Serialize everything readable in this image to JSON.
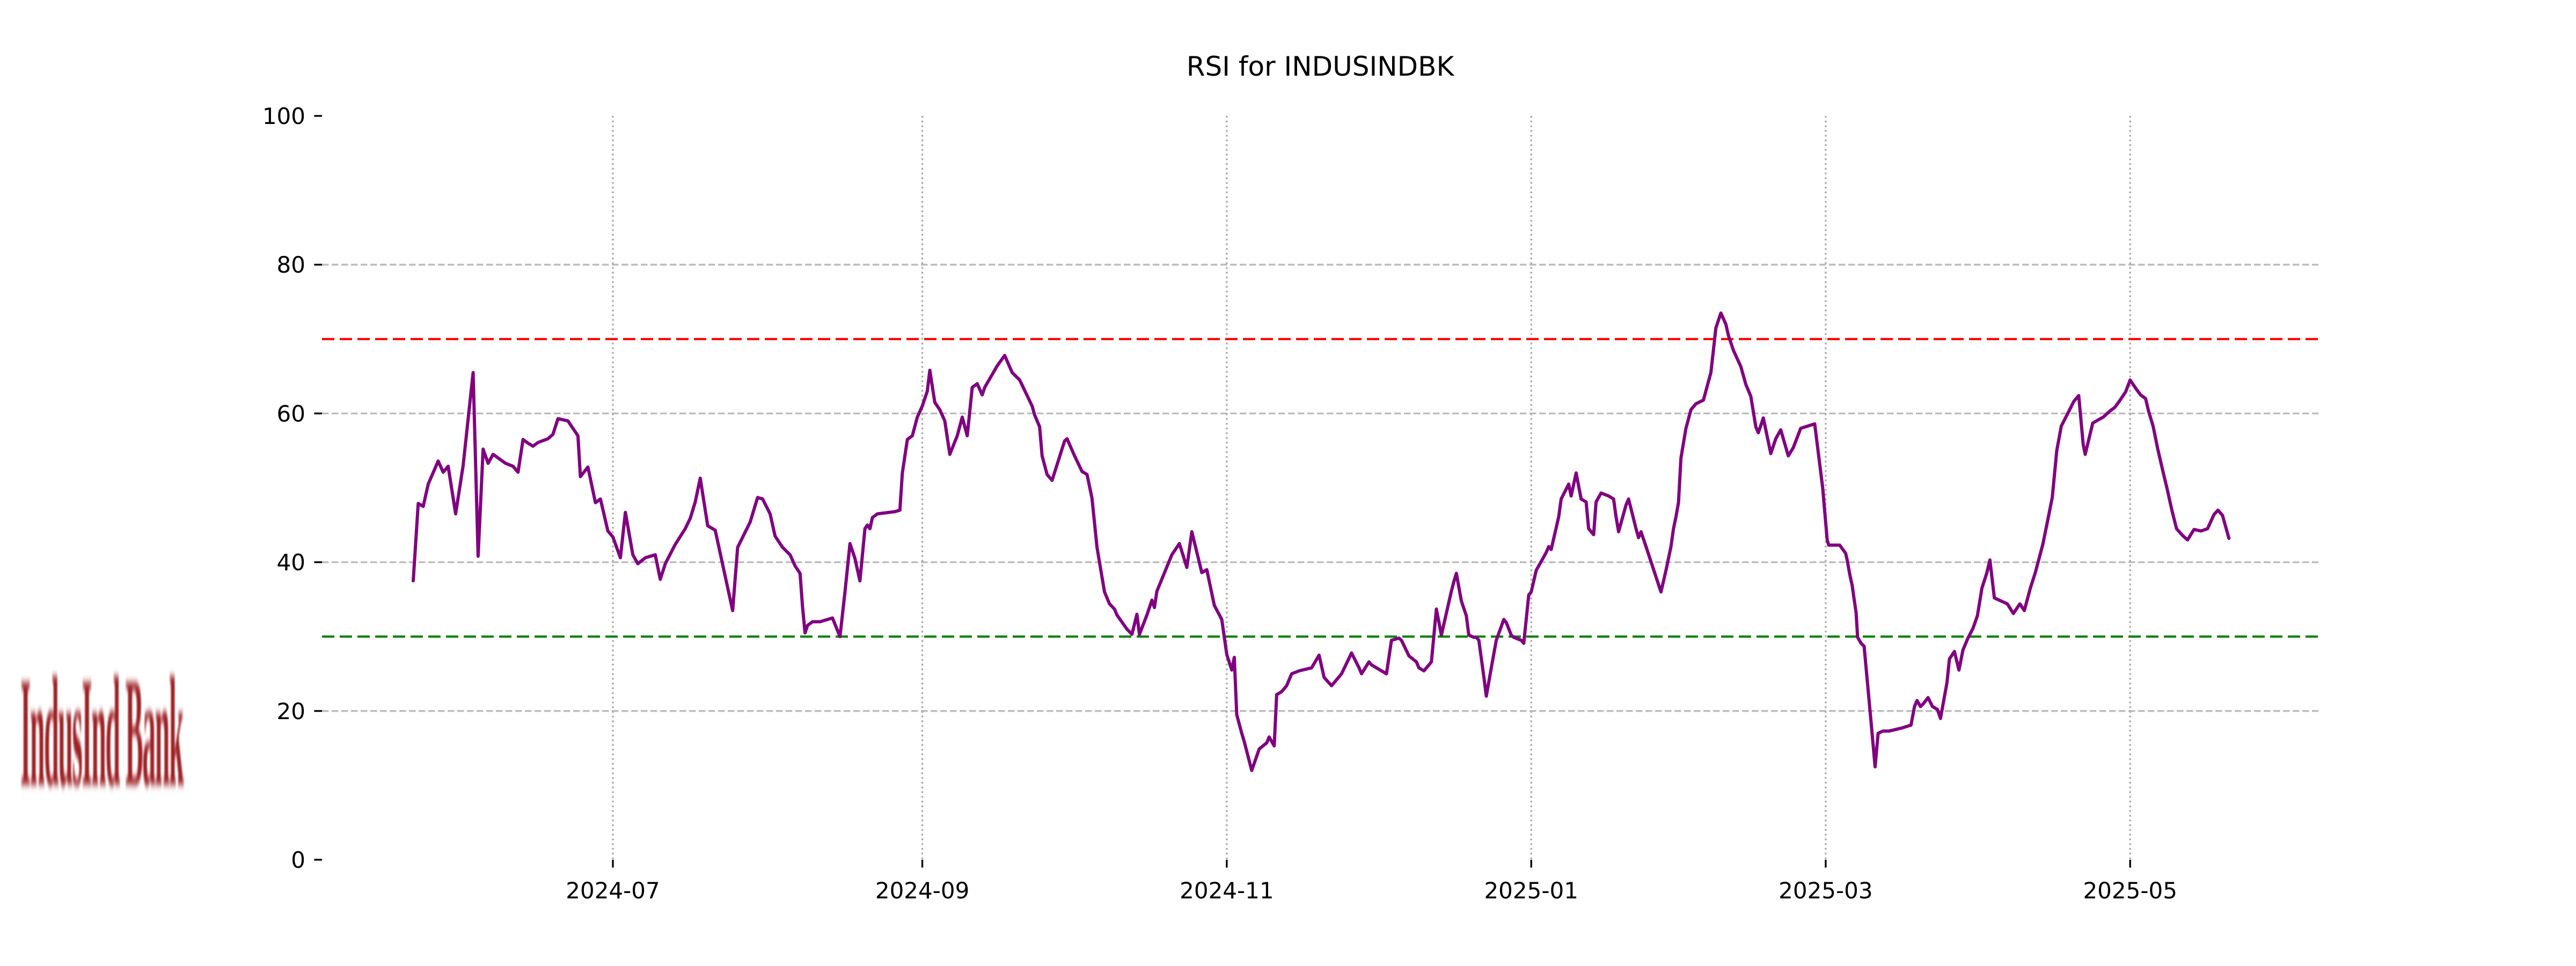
{
  "title": "RSI for INDUSINDBK",
  "watermark": {
    "text": "IndusInd Bank",
    "color": "#9E2125"
  },
  "chart_data": {
    "type": "line",
    "title": "RSI for INDUSINDBK",
    "series_name": "RSI",
    "line_color": "#800080",
    "grid": "on",
    "legend_position": "none",
    "ylim": [
      0,
      100
    ],
    "y_ticks": [
      0,
      20,
      40,
      60,
      80,
      100
    ],
    "y_gridlines": [
      20,
      40,
      60,
      80
    ],
    "reference_lines": [
      {
        "name": "overbought",
        "value": 70,
        "color": "#FF0000"
      },
      {
        "name": "oversold",
        "value": 30,
        "color": "#008000"
      }
    ],
    "x_epoch": "2024-05-22",
    "x_ticks": [
      {
        "label": "2024-07",
        "day": 40
      },
      {
        "label": "2024-09",
        "day": 102
      },
      {
        "label": "2024-11",
        "day": 163
      },
      {
        "label": "2025-01",
        "day": 224
      },
      {
        "label": "2025-03",
        "day": 283
      },
      {
        "label": "2025-05",
        "day": 344
      }
    ],
    "points": [
      [
        0,
        37.5
      ],
      [
        1,
        47.9
      ],
      [
        2,
        47.5
      ],
      [
        3,
        50.5
      ],
      [
        5,
        53.6
      ],
      [
        6,
        52.1
      ],
      [
        7,
        52.9
      ],
      [
        8.5,
        46.5
      ],
      [
        10,
        53.0
      ],
      [
        12,
        65.5
      ],
      [
        13,
        40.8
      ],
      [
        14,
        55.2
      ],
      [
        15,
        53.3
      ],
      [
        16,
        54.5
      ],
      [
        18.5,
        53.3
      ],
      [
        20,
        52.9
      ],
      [
        21,
        52.1
      ],
      [
        22,
        56.5
      ],
      [
        23,
        56.0
      ],
      [
        24,
        55.6
      ],
      [
        25,
        56.1
      ],
      [
        27,
        56.6
      ],
      [
        28,
        57.2
      ],
      [
        29,
        59.3
      ],
      [
        31,
        59.0
      ],
      [
        33,
        57.0
      ],
      [
        33.5,
        51.5
      ],
      [
        35,
        52.8
      ],
      [
        36.5,
        48.0
      ],
      [
        37.5,
        48.5
      ],
      [
        39,
        44.2
      ],
      [
        40,
        43.4
      ],
      [
        41.5,
        40.6
      ],
      [
        42.5,
        46.7
      ],
      [
        44,
        41.0
      ],
      [
        45,
        39.8
      ],
      [
        46.5,
        40.6
      ],
      [
        48.5,
        41.0
      ],
      [
        49.5,
        37.7
      ],
      [
        50.5,
        39.8
      ],
      [
        52.5,
        42.4
      ],
      [
        54.5,
        44.5
      ],
      [
        55.5,
        45.9
      ],
      [
        56.5,
        48.1
      ],
      [
        57.5,
        51.3
      ],
      [
        59,
        44.9
      ],
      [
        60.5,
        44.3
      ],
      [
        64,
        33.5
      ],
      [
        65,
        42.0
      ],
      [
        67.5,
        45.4
      ],
      [
        69,
        48.7
      ],
      [
        70,
        48.5
      ],
      [
        71.5,
        46.5
      ],
      [
        72.5,
        43.5
      ],
      [
        74,
        42.0
      ],
      [
        75.5,
        41.0
      ],
      [
        76.5,
        39.5
      ],
      [
        77.5,
        38.5
      ],
      [
        78,
        34.0
      ],
      [
        78.5,
        30.5
      ],
      [
        79,
        31.5
      ],
      [
        80,
        32.0
      ],
      [
        81.5,
        32.0
      ],
      [
        84,
        32.5
      ],
      [
        85.5,
        30.0
      ],
      [
        86.5,
        36.0
      ],
      [
        87.5,
        42.5
      ],
      [
        88.5,
        40.5
      ],
      [
        89.5,
        37.5
      ],
      [
        90.5,
        44.5
      ],
      [
        91,
        45.0
      ],
      [
        91.5,
        44.5
      ],
      [
        92,
        46.0
      ],
      [
        93,
        46.5
      ],
      [
        96.5,
        46.8
      ],
      [
        97.5,
        47.0
      ],
      [
        98,
        52.0
      ],
      [
        99,
        56.5
      ],
      [
        100,
        57.0
      ],
      [
        101,
        59.5
      ],
      [
        102,
        61.0
      ],
      [
        103,
        63.0
      ],
      [
        103.5,
        65.8
      ],
      [
        104.5,
        61.5
      ],
      [
        105.5,
        60.5
      ],
      [
        106.5,
        59.0
      ],
      [
        107.5,
        54.5
      ],
      [
        109,
        57.0
      ],
      [
        110,
        59.5
      ],
      [
        111,
        57.0
      ],
      [
        112,
        63.5
      ],
      [
        113,
        64.0
      ],
      [
        114,
        62.5
      ],
      [
        114.5,
        63.5
      ],
      [
        117,
        66.4
      ],
      [
        118.5,
        67.8
      ],
      [
        120,
        65.5
      ],
      [
        121.5,
        64.5
      ],
      [
        124,
        61.0
      ],
      [
        124.5,
        59.8
      ],
      [
        125.5,
        58.2
      ],
      [
        126,
        54.3
      ],
      [
        127,
        51.8
      ],
      [
        128,
        51.0
      ],
      [
        130.5,
        56.3
      ],
      [
        131,
        56.6
      ],
      [
        132.5,
        54.3
      ],
      [
        134,
        52.2
      ],
      [
        135,
        51.8
      ],
      [
        136,
        48.6
      ],
      [
        137,
        42.0
      ],
      [
        138,
        38.0
      ],
      [
        138.5,
        36.0
      ],
      [
        139.5,
        34.4
      ],
      [
        140.5,
        33.7
      ],
      [
        141,
        32.9
      ],
      [
        143,
        31.0
      ],
      [
        144,
        30.3
      ],
      [
        145,
        33.0
      ],
      [
        145.5,
        30.3
      ],
      [
        147,
        32.9
      ],
      [
        148,
        34.9
      ],
      [
        148.5,
        33.9
      ],
      [
        149,
        36.1
      ],
      [
        152,
        41.0
      ],
      [
        153.5,
        42.5
      ],
      [
        155,
        39.3
      ],
      [
        156,
        44.1
      ],
      [
        158,
        38.6
      ],
      [
        159,
        39.0
      ],
      [
        160.5,
        34.2
      ],
      [
        162,
        32.3
      ],
      [
        163,
        27.6
      ],
      [
        164,
        25.5
      ],
      [
        164.5,
        27.2
      ],
      [
        165,
        19.5
      ],
      [
        166,
        17.0
      ],
      [
        166.5,
        15.9
      ],
      [
        168,
        12.0
      ],
      [
        169.5,
        14.9
      ],
      [
        171,
        15.7
      ],
      [
        171.5,
        16.5
      ],
      [
        172.5,
        15.3
      ],
      [
        173,
        22.2
      ],
      [
        174,
        22.6
      ],
      [
        175,
        23.4
      ],
      [
        176,
        25.0
      ],
      [
        177.5,
        25.4
      ],
      [
        180,
        25.8
      ],
      [
        181.5,
        27.5
      ],
      [
        182.5,
        24.5
      ],
      [
        184,
        23.4
      ],
      [
        186,
        25.0
      ],
      [
        188,
        27.8
      ],
      [
        189.5,
        25.8
      ],
      [
        190,
        25.0
      ],
      [
        191.5,
        26.6
      ],
      [
        192,
        26.2
      ],
      [
        194,
        25.4
      ],
      [
        195,
        25.0
      ],
      [
        196,
        29.5
      ],
      [
        197.5,
        29.8
      ],
      [
        198,
        29.5
      ],
      [
        199.5,
        27.4
      ],
      [
        201,
        26.6
      ],
      [
        201.5,
        25.8
      ],
      [
        202.5,
        25.4
      ],
      [
        203.5,
        26.2
      ],
      [
        204,
        26.6
      ],
      [
        205,
        33.7
      ],
      [
        206,
        30.2
      ],
      [
        208,
        36.1
      ],
      [
        208.5,
        37.4
      ],
      [
        209,
        38.5
      ],
      [
        210,
        34.8
      ],
      [
        211,
        32.8
      ],
      [
        211.5,
        30.2
      ],
      [
        212.5,
        29.9
      ],
      [
        213,
        29.9
      ],
      [
        213.5,
        29.5
      ],
      [
        214.5,
        24.6
      ],
      [
        215,
        22.0
      ],
      [
        216,
        25.8
      ],
      [
        217,
        29.5
      ],
      [
        218.5,
        32.3
      ],
      [
        219,
        31.9
      ],
      [
        220,
        30.2
      ],
      [
        220.5,
        29.9
      ],
      [
        222,
        29.5
      ],
      [
        222.5,
        29.1
      ],
      [
        223.5,
        35.6
      ],
      [
        224,
        36.0
      ],
      [
        225,
        38.9
      ],
      [
        226,
        40.1
      ],
      [
        227,
        41.3
      ],
      [
        227.5,
        42.1
      ],
      [
        228,
        41.7
      ],
      [
        229.5,
        46.1
      ],
      [
        230,
        48.5
      ],
      [
        231.5,
        50.5
      ],
      [
        232,
        48.9
      ],
      [
        233,
        52.0
      ],
      [
        234,
        48.5
      ],
      [
        235,
        48.1
      ],
      [
        235.5,
        44.5
      ],
      [
        236.5,
        43.7
      ],
      [
        237,
        48.1
      ],
      [
        238,
        49.3
      ],
      [
        239.5,
        48.9
      ],
      [
        240.5,
        48.5
      ],
      [
        241,
        46.1
      ],
      [
        241.5,
        44.1
      ],
      [
        243,
        47.7
      ],
      [
        243.5,
        48.5
      ],
      [
        245,
        44.5
      ],
      [
        245.5,
        43.3
      ],
      [
        246,
        44.1
      ],
      [
        247,
        42.1
      ],
      [
        250,
        36.0
      ],
      [
        251,
        38.9
      ],
      [
        252,
        42.1
      ],
      [
        252.5,
        44.5
      ],
      [
        253,
        46.1
      ],
      [
        253.5,
        48.0
      ],
      [
        254,
        54.0
      ],
      [
        255,
        58.0
      ],
      [
        256,
        60.5
      ],
      [
        257,
        61.3
      ],
      [
        258.5,
        61.8
      ],
      [
        260,
        65.5
      ],
      [
        260.5,
        68.5
      ],
      [
        261,
        71.5
      ],
      [
        262,
        73.5
      ],
      [
        263,
        72.0
      ],
      [
        263.5,
        70.5
      ],
      [
        264.5,
        68.5
      ],
      [
        266,
        66.3
      ],
      [
        267,
        63.9
      ],
      [
        268,
        62.3
      ],
      [
        269,
        58.2
      ],
      [
        269.5,
        57.4
      ],
      [
        270.5,
        59.4
      ],
      [
        272,
        54.6
      ],
      [
        273,
        56.6
      ],
      [
        274,
        57.8
      ],
      [
        275.5,
        54.3
      ],
      [
        276.5,
        55.4
      ],
      [
        278,
        58.0
      ],
      [
        280.8,
        58.6
      ],
      [
        282.4,
        50.0
      ],
      [
        283.3,
        43.0
      ],
      [
        283.6,
        42.3
      ],
      [
        285.8,
        42.3
      ],
      [
        287,
        41.2
      ],
      [
        287.3,
        40.3
      ],
      [
        287.9,
        38.1
      ],
      [
        288.3,
        36.9
      ],
      [
        289.1,
        33.2
      ],
      [
        289.4,
        29.9
      ],
      [
        290.1,
        29.1
      ],
      [
        290.7,
        28.7
      ],
      [
        291.7,
        21.4
      ],
      [
        292.9,
        12.5
      ],
      [
        293.5,
        17.0
      ],
      [
        294.5,
        17.3
      ],
      [
        295.7,
        17.3
      ],
      [
        298.2,
        17.7
      ],
      [
        300.1,
        18.1
      ],
      [
        300.8,
        20.6
      ],
      [
        301.3,
        21.4
      ],
      [
        302,
        20.6
      ],
      [
        302.6,
        21.0
      ],
      [
        303.5,
        21.8
      ],
      [
        304.4,
        20.6
      ],
      [
        305.4,
        20.2
      ],
      [
        306,
        19.0
      ],
      [
        307.3,
        23.8
      ],
      [
        307.8,
        27.0
      ],
      [
        308.8,
        28.0
      ],
      [
        309.7,
        25.5
      ],
      [
        310.5,
        28.2
      ],
      [
        311.5,
        29.8
      ],
      [
        312.5,
        31.1
      ],
      [
        313.4,
        32.8
      ],
      [
        314.3,
        36.5
      ],
      [
        315.3,
        38.6
      ],
      [
        315.9,
        40.3
      ],
      [
        316.8,
        35.2
      ],
      [
        318.1,
        34.8
      ],
      [
        319.4,
        34.4
      ],
      [
        320.6,
        33.1
      ],
      [
        321.9,
        34.4
      ],
      [
        322.8,
        33.5
      ],
      [
        324,
        36.5
      ],
      [
        325,
        38.6
      ],
      [
        326.5,
        42.4
      ],
      [
        327.5,
        45.7
      ],
      [
        328.4,
        48.7
      ],
      [
        329.3,
        55.0
      ],
      [
        330.2,
        58.3
      ],
      [
        331.5,
        60.0
      ],
      [
        332.7,
        61.6
      ],
      [
        333.7,
        62.4
      ],
      [
        334.6,
        55.8
      ],
      [
        335,
        54.5
      ],
      [
        336.5,
        58.7
      ],
      [
        337.5,
        59.1
      ],
      [
        338.6,
        59.5
      ],
      [
        339.9,
        60.3
      ],
      [
        340.9,
        60.8
      ],
      [
        341.8,
        61.6
      ],
      [
        343.1,
        62.9
      ],
      [
        344,
        64.5
      ],
      [
        345.2,
        63.3
      ],
      [
        346.1,
        62.5
      ],
      [
        347.1,
        62.0
      ],
      [
        347.7,
        60.3
      ],
      [
        348.6,
        58.3
      ],
      [
        349.5,
        55.3
      ],
      [
        350.5,
        52.4
      ],
      [
        351.4,
        49.9
      ],
      [
        352.4,
        46.9
      ],
      [
        353.3,
        44.5
      ],
      [
        354.5,
        43.6
      ],
      [
        355.5,
        43.0
      ],
      [
        356.8,
        44.4
      ],
      [
        358.2,
        44.2
      ],
      [
        359.5,
        44.5
      ],
      [
        360.8,
        46.4
      ],
      [
        361.6,
        47.0
      ],
      [
        362.5,
        46.3
      ],
      [
        363.8,
        43.2
      ]
    ],
    "style": {
      "h_grid_color": "#bbbbbb",
      "v_grid_color": "#a8a8a8",
      "tick_color": "#000000",
      "axis_text_color": "#000000"
    }
  }
}
